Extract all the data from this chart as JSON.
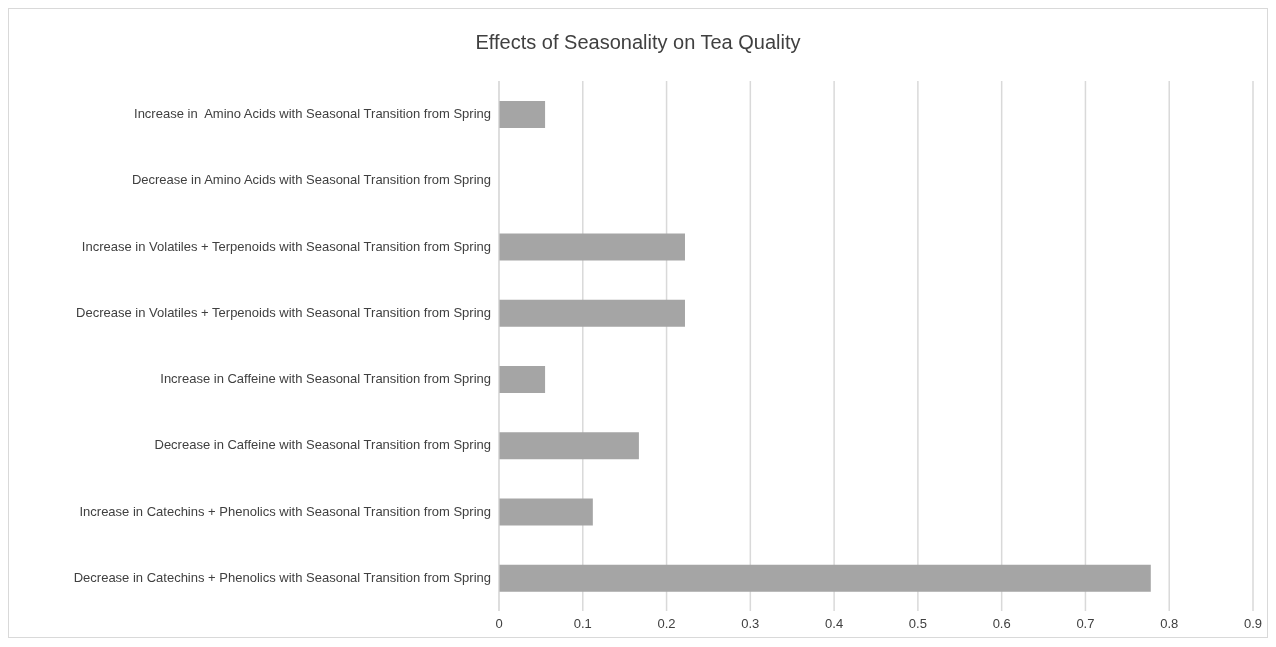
{
  "chart_data": {
    "type": "bar",
    "orientation": "horizontal",
    "title": "Effects of Seasonality on Tea Quality",
    "categories": [
      "Increase in  Amino Acids with Seasonal Transition from Spring",
      "Decrease in Amino Acids with Seasonal Transition from Spring",
      "Increase in Volatiles + Terpenoids with Seasonal Transition from Spring",
      "Decrease in Volatiles + Terpenoids with Seasonal Transition from Spring",
      "Increase in Caffeine with Seasonal Transition from Spring",
      "Decrease in Caffeine with Seasonal Transition from Spring",
      "Increase in Catechins + Phenolics with Seasonal Transition from Spring",
      "Decrease in Catechins + Phenolics with Seasonal Transition from Spring"
    ],
    "values": [
      0.055,
      0,
      0.222,
      0.222,
      0.055,
      0.167,
      0.112,
      0.778
    ],
    "color": "#a5a5a5",
    "xlim": [
      0,
      0.9
    ],
    "xticks": [
      0,
      0.1,
      0.2,
      0.3,
      0.4,
      0.5,
      0.6,
      0.7,
      0.8,
      0.9
    ],
    "grid": "x"
  }
}
